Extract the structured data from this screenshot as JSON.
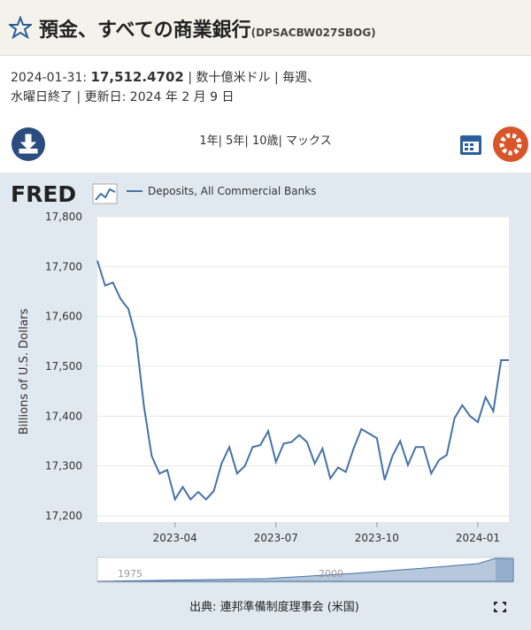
{
  "header": {
    "title": "預金、すべての商業銀行",
    "series_id": "(DPSACBW027SBOG)"
  },
  "info": {
    "date": "2024-01-31:",
    "value": "17,512.4702",
    "line1_rest": "| 数十億米ドル | 毎週、",
    "line2": "水曜日終了 | 更新日: 2024 年 2 月 9 日"
  },
  "ranges": "1年| 5年| 10歳| マックス",
  "footer": "出典: 連邦準備制度理事会 (米国)",
  "navigator": {
    "labels": [
      "1975",
      "2000"
    ]
  },
  "chart_data": {
    "type": "line",
    "y_label": "Billions of U.S. Dollars",
    "categories": [
      null,
      null,
      null,
      null,
      null,
      null,
      null,
      null,
      null,
      null,
      "2023-04",
      null,
      null,
      null,
      null,
      null,
      null,
      null,
      null,
      null,
      null,
      null,
      null,
      "2023-07",
      null,
      null,
      null,
      null,
      null,
      null,
      null,
      null,
      null,
      null,
      null,
      null,
      "2023-10",
      null,
      null,
      null,
      null,
      null,
      null,
      null,
      null,
      null,
      null,
      null,
      null,
      "2024-01",
      null,
      null,
      null,
      null
    ],
    "series": [
      {
        "name": "Deposits, All Commercial Banks",
        "color": "#4572a7",
        "values": [
          17712,
          17662,
          17668,
          17635,
          17615,
          17555,
          17420,
          17320,
          17285,
          17292,
          17233,
          17258,
          17233,
          17248,
          17233,
          17250,
          17305,
          17338,
          17285,
          17300,
          17338,
          17342,
          17370,
          17308,
          17345,
          17348,
          17362,
          17348,
          17305,
          17335,
          17275,
          17297,
          17288,
          17335,
          17374,
          17365,
          17356,
          17272,
          17320,
          17350,
          17302,
          17338,
          17338,
          17285,
          17312,
          17322,
          17396,
          17422,
          17400,
          17388,
          17438,
          17410,
          17512.4702,
          17512.4702
        ]
      }
    ],
    "ylim": [
      17200,
      17800
    ],
    "yticks": [
      {
        "value": 17200,
        "label": "17,200"
      },
      {
        "value": 17300,
        "label": "17,300"
      },
      {
        "value": 17400,
        "label": "17,400"
      },
      {
        "value": 17500,
        "label": "17,500"
      },
      {
        "value": 17600,
        "label": "17,600"
      },
      {
        "value": 17700,
        "label": "17,700"
      },
      {
        "value": 17800,
        "label": "17,800"
      }
    ],
    "grid": true
  }
}
